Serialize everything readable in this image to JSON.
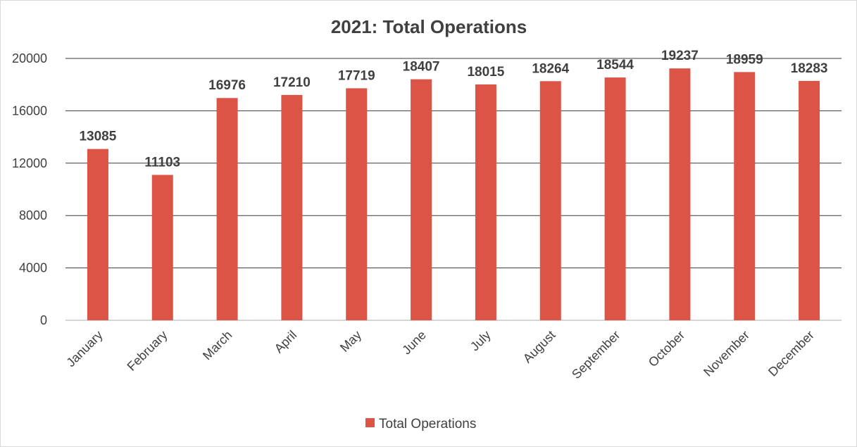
{
  "chart_data": {
    "type": "bar",
    "title": "2021: Total Operations",
    "xlabel": "",
    "ylabel": "",
    "categories": [
      "January",
      "February",
      "March",
      "April",
      "May",
      "June",
      "July",
      "August",
      "September",
      "October",
      "November",
      "December"
    ],
    "series": [
      {
        "name": "Total Operations",
        "values": [
          13085,
          11103,
          16976,
          17210,
          17719,
          18407,
          18015,
          18264,
          18544,
          19237,
          18959,
          18283
        ],
        "color": "#dc5445"
      }
    ],
    "ylim": [
      0,
      20000
    ],
    "yticks": [
      "0",
      "4000",
      "8000",
      "12000",
      "16000",
      "20000"
    ],
    "grid": true,
    "legend_position": "bottom"
  }
}
